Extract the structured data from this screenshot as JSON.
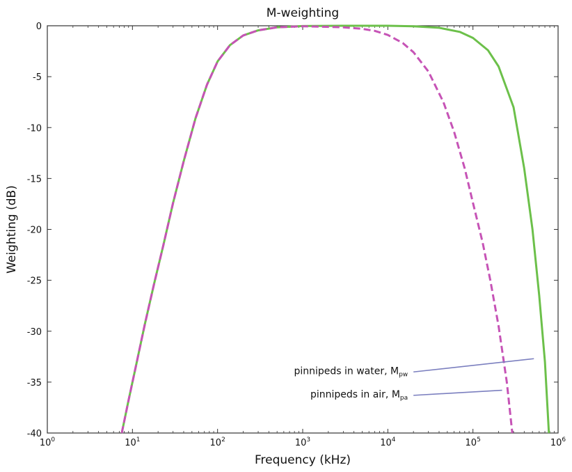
{
  "chart_data": {
    "type": "line",
    "title": "M-weighting",
    "xlabel": "Frequency (kHz)",
    "ylabel": "Weighting (dB)",
    "xscale": "log",
    "xlim": [
      1,
      1000000
    ],
    "ylim": [
      -40,
      0
    ],
    "x_ticks": [
      {
        "value": 1,
        "base": "10",
        "exp": "0"
      },
      {
        "value": 10,
        "base": "10",
        "exp": "1"
      },
      {
        "value": 100,
        "base": "10",
        "exp": "2"
      },
      {
        "value": 1000,
        "base": "10",
        "exp": "3"
      },
      {
        "value": 10000,
        "base": "10",
        "exp": "4"
      },
      {
        "value": 100000,
        "base": "10",
        "exp": "5"
      },
      {
        "value": 1000000,
        "base": "10",
        "exp": "6"
      }
    ],
    "y_ticks": [
      {
        "value": 0,
        "label": "0"
      },
      {
        "value": -5,
        "label": "-5"
      },
      {
        "value": -10,
        "label": "-10"
      },
      {
        "value": -15,
        "label": "-15"
      },
      {
        "value": -20,
        "label": "-20"
      },
      {
        "value": -25,
        "label": "-25"
      },
      {
        "value": -30,
        "label": "-30"
      },
      {
        "value": -35,
        "label": "-35"
      },
      {
        "value": -40,
        "label": "-40"
      }
    ],
    "grid": false,
    "series": [
      {
        "color": "#6cc04a",
        "dash": "solid",
        "x": [
          7.5,
          9,
          11,
          14,
          18,
          23,
          30,
          40,
          55,
          75,
          100,
          140,
          200,
          300,
          500,
          1000,
          3000,
          10000,
          20000,
          40000,
          70000,
          100000,
          150000,
          200000,
          300000,
          400000,
          500000,
          600000,
          700000,
          780000
        ],
        "y": [
          -40,
          -36.8,
          -33.4,
          -29.3,
          -25.3,
          -21.6,
          -17.4,
          -13.3,
          -9.1,
          -5.8,
          -3.5,
          -1.9,
          -0.95,
          -0.45,
          -0.15,
          -0.03,
          0,
          0,
          -0.05,
          -0.2,
          -0.6,
          -1.2,
          -2.4,
          -4,
          -8,
          -14,
          -20,
          -26.5,
          -33,
          -40
        ]
      },
      {
        "color": "#c653b6",
        "dash": "dashed",
        "x": [
          7.5,
          9,
          11,
          14,
          18,
          23,
          30,
          40,
          55,
          75,
          100,
          140,
          200,
          300,
          500,
          1000,
          3000,
          5000,
          7000,
          10000,
          15000,
          20000,
          30000,
          45000,
          60000,
          80000,
          100000,
          130000,
          160000,
          200000,
          250000,
          290000
        ],
        "y": [
          -40,
          -36.8,
          -33.4,
          -29.3,
          -25.3,
          -21.6,
          -17.4,
          -13.3,
          -9.1,
          -5.8,
          -3.5,
          -1.9,
          -0.95,
          -0.45,
          -0.15,
          -0.05,
          -0.15,
          -0.3,
          -0.5,
          -0.9,
          -1.7,
          -2.6,
          -4.5,
          -7.5,
          -10.4,
          -14,
          -17.4,
          -21.3,
          -25,
          -29.5,
          -35,
          -40
        ]
      }
    ],
    "annotations": [
      {
        "label": "pinnipeds in water, M",
        "sub": "pw",
        "color": "#7b7fbf",
        "from": [
          20000,
          -34.0
        ],
        "to": [
          520000,
          -32.7
        ]
      },
      {
        "label": "pinnipeds in air, M",
        "sub": "pa",
        "color": "#7b7fbf",
        "from": [
          20000,
          -36.3
        ],
        "to": [
          220000,
          -35.8
        ]
      }
    ]
  }
}
